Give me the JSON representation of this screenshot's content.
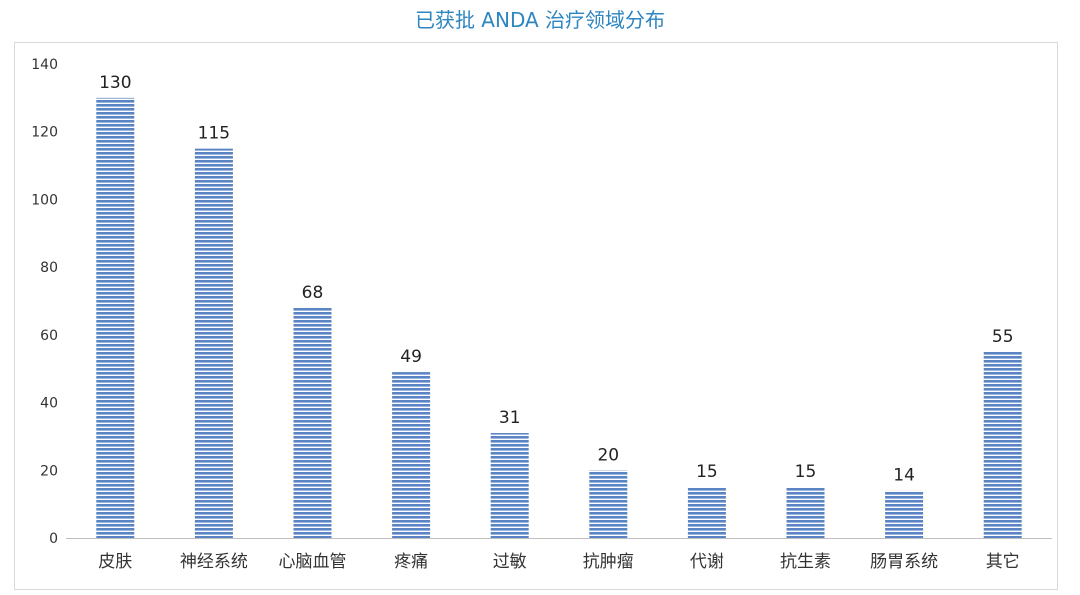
{
  "chart_data": {
    "type": "bar",
    "title": "已获批 ANDA 治疗领域分布",
    "categories": [
      "皮肤",
      "神经系统",
      "心脑血管",
      "疼痛",
      "过敏",
      "抗肿瘤",
      "代谢",
      "抗生素",
      "肠胃系统",
      "其它"
    ],
    "values": [
      130,
      115,
      68,
      49,
      31,
      20,
      15,
      15,
      14,
      55
    ],
    "ylim": [
      0,
      140
    ],
    "yticks": [
      0,
      20,
      40,
      60,
      80,
      100,
      120,
      140
    ],
    "grid": false,
    "legend": "none",
    "colors": {
      "bar": "#5B84C4",
      "bar_stripe": "#FFFFFF",
      "title": "#2E86C1"
    }
  }
}
